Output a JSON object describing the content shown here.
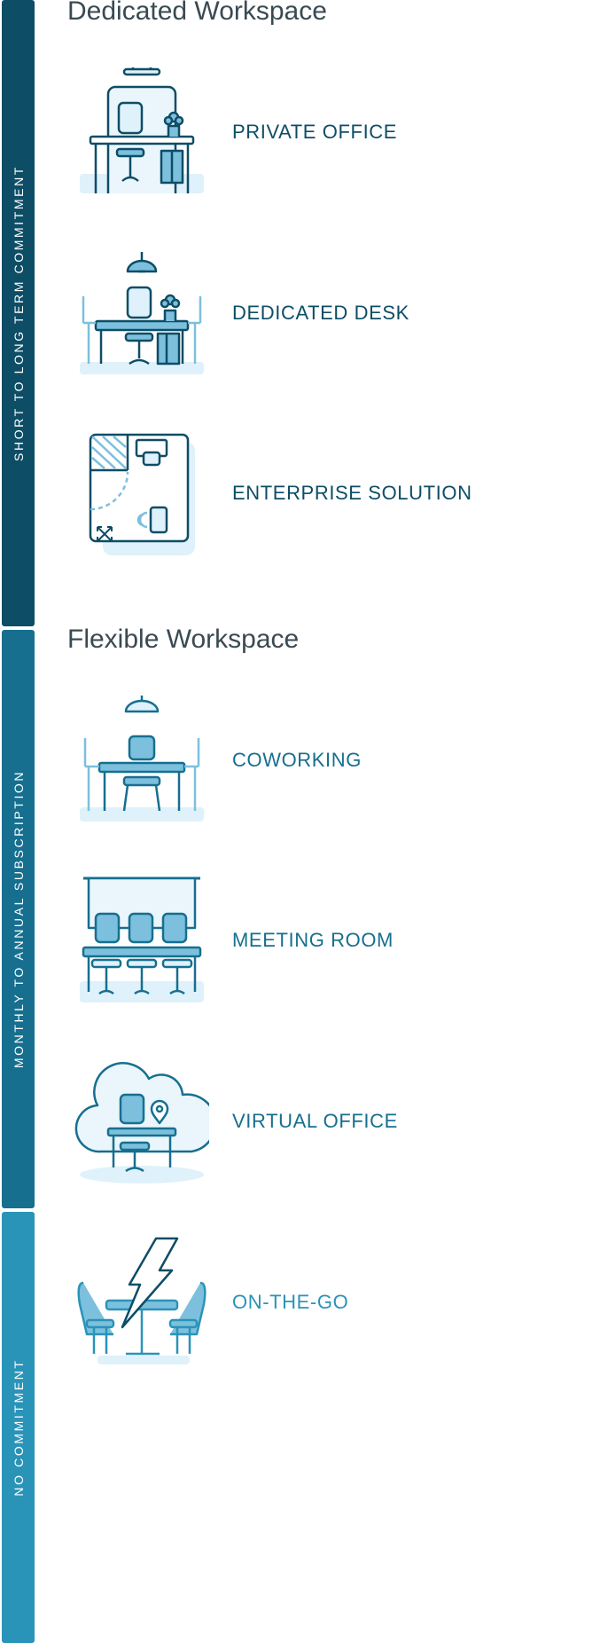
{
  "sidebar": {
    "short_long": "SHORT TO LONG TERM COMMITMENT",
    "monthly_annual": "MONTHLY TO ANNUAL SUBSCRIPTION",
    "no_commitment": "NO COMMITMENT"
  },
  "sections": {
    "dedicated": {
      "title": "Dedicated Workspace",
      "items": [
        {
          "label": "PRIVATE OFFICE",
          "icon": "private-office-icon"
        },
        {
          "label": "DEDICATED DESK",
          "icon": "dedicated-desk-icon"
        },
        {
          "label": "ENTERPRISE SOLUTION",
          "icon": "enterprise-solution-icon"
        }
      ]
    },
    "flexible": {
      "title": "Flexible Workspace",
      "items": [
        {
          "label": "COWORKING",
          "icon": "coworking-icon"
        },
        {
          "label": "MEETING ROOM",
          "icon": "meeting-room-icon"
        },
        {
          "label": "VIRTUAL OFFICE",
          "icon": "virtual-office-icon"
        },
        {
          "label": "ON-THE-GO",
          "icon": "on-the-go-icon"
        }
      ]
    }
  },
  "colors": {
    "dark_teal": "#0e4d66",
    "mid_teal": "#166f8f",
    "light_teal": "#2a93b8",
    "heading_gray": "#3a4a52",
    "icon_fill_light": "#dff1fa",
    "icon_fill_mid": "#7cc0dd"
  }
}
